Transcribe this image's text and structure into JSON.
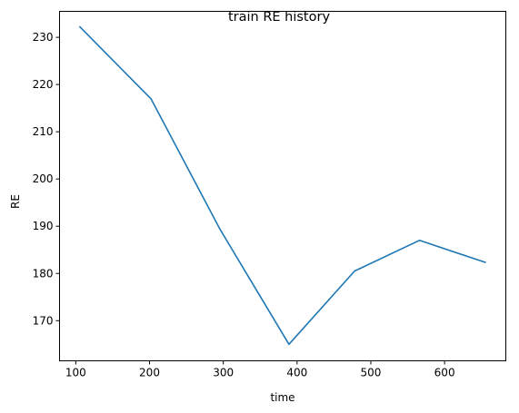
{
  "chart_data": {
    "type": "line",
    "title": "train RE history",
    "xlabel": "time",
    "ylabel": "RE",
    "xlim": [
      78,
      683
    ],
    "ylim": [
      161.5,
      235.5
    ],
    "xticks": [
      100,
      200,
      300,
      400,
      500,
      600
    ],
    "yticks": [
      170,
      180,
      190,
      200,
      210,
      220,
      230
    ],
    "grid": false,
    "series": [
      {
        "color": "#1f77b4",
        "x": [
          105,
          202,
          295,
          389,
          478,
          566,
          656
        ],
        "y": [
          232.3,
          217.0,
          189.5,
          165.0,
          180.5,
          187.0,
          182.3
        ]
      }
    ]
  }
}
